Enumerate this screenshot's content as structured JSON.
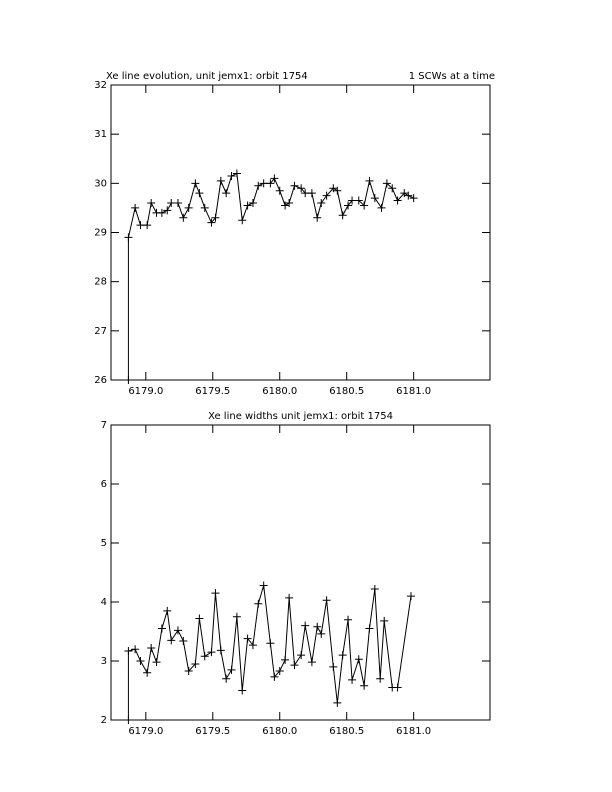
{
  "chart_data": [
    {
      "type": "line",
      "title": "Xe line evolution, unit jemx1: orbit 1754",
      "annotation": "1 SCWs at a time",
      "color": "#000000",
      "marker": "+",
      "x": [
        6178.87,
        6178.87,
        6178.92,
        6178.96,
        6179.01,
        6179.04,
        6179.08,
        6179.12,
        6179.16,
        6179.19,
        6179.24,
        6179.28,
        6179.32,
        6179.37,
        6179.4,
        6179.44,
        6179.49,
        6179.52,
        6179.56,
        6179.6,
        6179.64,
        6179.68,
        6179.72,
        6179.76,
        6179.8,
        6179.84,
        6179.88,
        6179.93,
        6179.96,
        6180.0,
        6180.04,
        6180.07,
        6180.11,
        6180.16,
        6180.19,
        6180.24,
        6180.28,
        6180.31,
        6180.35,
        6180.4,
        6180.43,
        6180.47,
        6180.51,
        6180.54,
        6180.59,
        6180.63,
        6180.67,
        6180.71,
        6180.76,
        6180.8,
        6180.84,
        6180.88,
        6180.93,
        6180.96,
        6181.0
      ],
      "values": [
        26,
        28.9,
        29.5,
        29.15,
        29.15,
        29.6,
        29.4,
        29.4,
        29.45,
        29.6,
        29.6,
        29.3,
        29.5,
        30.0,
        29.8,
        29.5,
        29.2,
        29.3,
        30.05,
        29.8,
        30.15,
        30.2,
        29.25,
        29.55,
        29.6,
        29.95,
        30.0,
        30.0,
        30.1,
        29.85,
        29.55,
        29.6,
        29.95,
        29.9,
        29.8,
        29.8,
        29.3,
        29.6,
        29.75,
        29.9,
        29.85,
        29.35,
        29.55,
        29.65,
        29.65,
        29.55,
        30.05,
        29.7,
        29.5,
        30.0,
        29.9,
        29.65,
        29.8,
        29.75,
        29.7
      ],
      "xlim": [
        6178.74,
        6181.57
      ],
      "ylim": [
        26,
        32
      ],
      "xticks": [
        {
          "value": 6179,
          "label": "6179.0"
        },
        {
          "value": 6179.5,
          "label": "6179.5"
        },
        {
          "value": 6180,
          "label": "6180.0"
        },
        {
          "value": 6180.5,
          "label": "6180.5"
        },
        {
          "value": 6181,
          "label": "6181.0"
        }
      ],
      "yticks": [
        26,
        27,
        28,
        29,
        30,
        31,
        32
      ]
    },
    {
      "type": "line",
      "title": "Xe line widths unit jemx1: orbit 1754",
      "color": "#000000",
      "marker": "+",
      "x": [
        6178.87,
        6178.87,
        6178.92,
        6178.96,
        6179.01,
        6179.04,
        6179.08,
        6179.12,
        6179.16,
        6179.19,
        6179.24,
        6179.28,
        6179.32,
        6179.37,
        6179.4,
        6179.44,
        6179.49,
        6179.52,
        6179.56,
        6179.6,
        6179.64,
        6179.68,
        6179.72,
        6179.76,
        6179.8,
        6179.84,
        6179.88,
        6179.93,
        6179.96,
        6180.0,
        6180.04,
        6180.07,
        6180.11,
        6180.16,
        6180.19,
        6180.24,
        6180.28,
        6180.31,
        6180.35,
        6180.4,
        6180.43,
        6180.47,
        6180.51,
        6180.54,
        6180.59,
        6180.63,
        6180.67,
        6180.71,
        6180.75,
        6180.78,
        6180.84,
        6180.88,
        6180.98
      ],
      "values": [
        2.0,
        3.17,
        3.2,
        3.0,
        2.8,
        3.22,
        2.98,
        3.55,
        3.85,
        3.35,
        3.52,
        3.34,
        2.83,
        2.95,
        3.72,
        3.08,
        3.15,
        4.15,
        3.18,
        2.7,
        2.85,
        3.75,
        2.5,
        3.38,
        3.27,
        3.97,
        4.28,
        3.3,
        2.73,
        2.83,
        3.02,
        4.07,
        2.93,
        3.1,
        3.6,
        2.98,
        3.58,
        3.46,
        4.03,
        2.9,
        2.29,
        3.1,
        3.7,
        2.68,
        3.03,
        2.58,
        3.55,
        4.22,
        2.7,
        3.68,
        2.55,
        2.55,
        4.1
      ],
      "xlim": [
        6178.74,
        6181.57
      ],
      "ylim": [
        2,
        7
      ],
      "xticks": [
        {
          "value": 6179,
          "label": "6179.0"
        },
        {
          "value": 6179.5,
          "label": "6179.5"
        },
        {
          "value": 6180,
          "label": "6180.0"
        },
        {
          "value": 6180.5,
          "label": "6180.5"
        },
        {
          "value": 6181,
          "label": "6181.0"
        }
      ],
      "yticks": [
        2,
        3,
        4,
        5,
        6,
        7
      ]
    }
  ]
}
